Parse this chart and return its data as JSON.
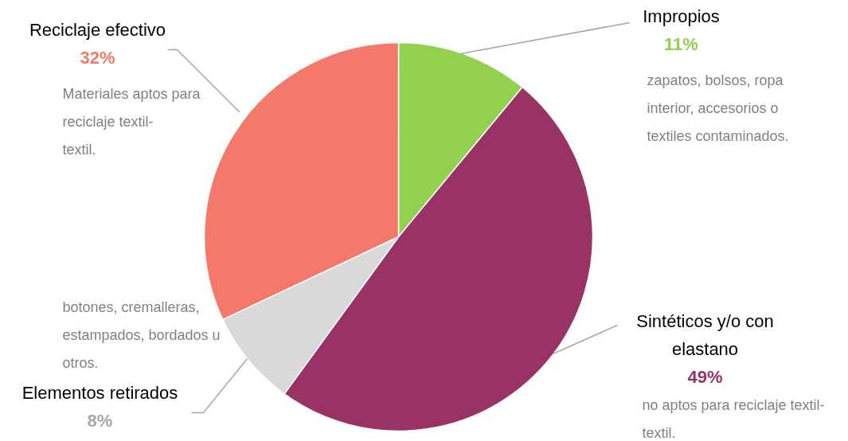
{
  "chart_data": {
    "type": "pie",
    "categories": [
      "Impropios",
      "Sintéticos y/o con elastano",
      "Elementos retirados",
      "Reciclaje efectivo"
    ],
    "values": [
      11,
      49,
      8,
      32
    ],
    "colors": [
      "#92d050",
      "#993366",
      "#d9d9d9",
      "#f4796b"
    ],
    "value_labels": [
      "11%",
      "49%",
      "8%",
      "32%"
    ],
    "annotations": [
      "zapatos, bolsos, ropa interior, accesorios o textiles contaminados.",
      "no aptos para reciclaje textil-textil.",
      "botones, cremalleras, estampados, bordados u otros.",
      "Materiales aptos para reciclaje textil-textil."
    ]
  }
}
